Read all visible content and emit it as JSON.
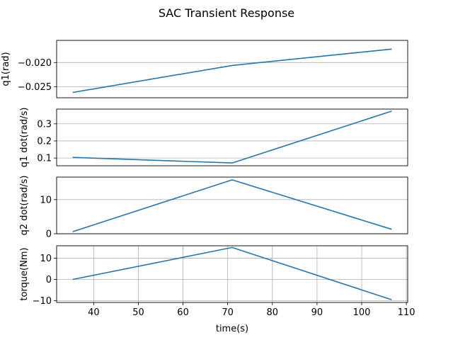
{
  "figure": {
    "title": "SAC Transient Response",
    "xlabel": "time(s)"
  },
  "chart_data": [
    {
      "type": "line",
      "ylabel": "q1(rad)",
      "x": [
        35.3,
        71.0,
        106.7
      ],
      "values": [
        -0.0262,
        -0.0206,
        -0.0172
      ],
      "ylim": [
        -0.0273,
        -0.0154
      ],
      "yticks": [
        -0.025,
        -0.02
      ],
      "ytick_labels": [
        "−0.025",
        "−0.020"
      ],
      "grid": "y",
      "show_xticks": false
    },
    {
      "type": "line",
      "ylabel": "q1 dot(rad/s)",
      "x": [
        35.3,
        71.0,
        106.7
      ],
      "values": [
        0.104,
        0.071,
        0.374
      ],
      "ylim": [
        0.055,
        0.386
      ],
      "yticks": [
        0.1,
        0.2,
        0.3
      ],
      "ytick_labels": [
        "0.1",
        "0.2",
        "0.3"
      ],
      "grid": "y",
      "show_xticks": false
    },
    {
      "type": "line",
      "ylabel": "q2 dot(rad/s)",
      "x": [
        35.3,
        71.0,
        106.7
      ],
      "values": [
        0.6,
        15.8,
        1.3
      ],
      "ylim": [
        0.0,
        16.6
      ],
      "yticks": [
        0,
        10
      ],
      "ytick_labels": [
        "0",
        "10"
      ],
      "grid": "y",
      "show_xticks": false
    },
    {
      "type": "line",
      "ylabel": "torque(Nm)",
      "x": [
        35.3,
        71.0,
        106.7
      ],
      "values": [
        0.0,
        15.0,
        -9.5
      ],
      "ylim": [
        -10.8,
        15.8
      ],
      "yticks": [
        -10,
        0,
        10
      ],
      "ytick_labels": [
        "−10",
        "0",
        "10"
      ],
      "grid": "both",
      "show_xticks": true
    }
  ],
  "xaxis": {
    "xlim": [
      31.7,
      110.3
    ],
    "xticks": [
      40,
      50,
      60,
      70,
      80,
      90,
      100,
      110
    ],
    "xtick_labels": [
      "40",
      "50",
      "60",
      "70",
      "80",
      "90",
      "100",
      "110"
    ]
  },
  "colors": {
    "line": "#1f77b4",
    "grid": "#b0b0b0",
    "axes": "#000000"
  }
}
